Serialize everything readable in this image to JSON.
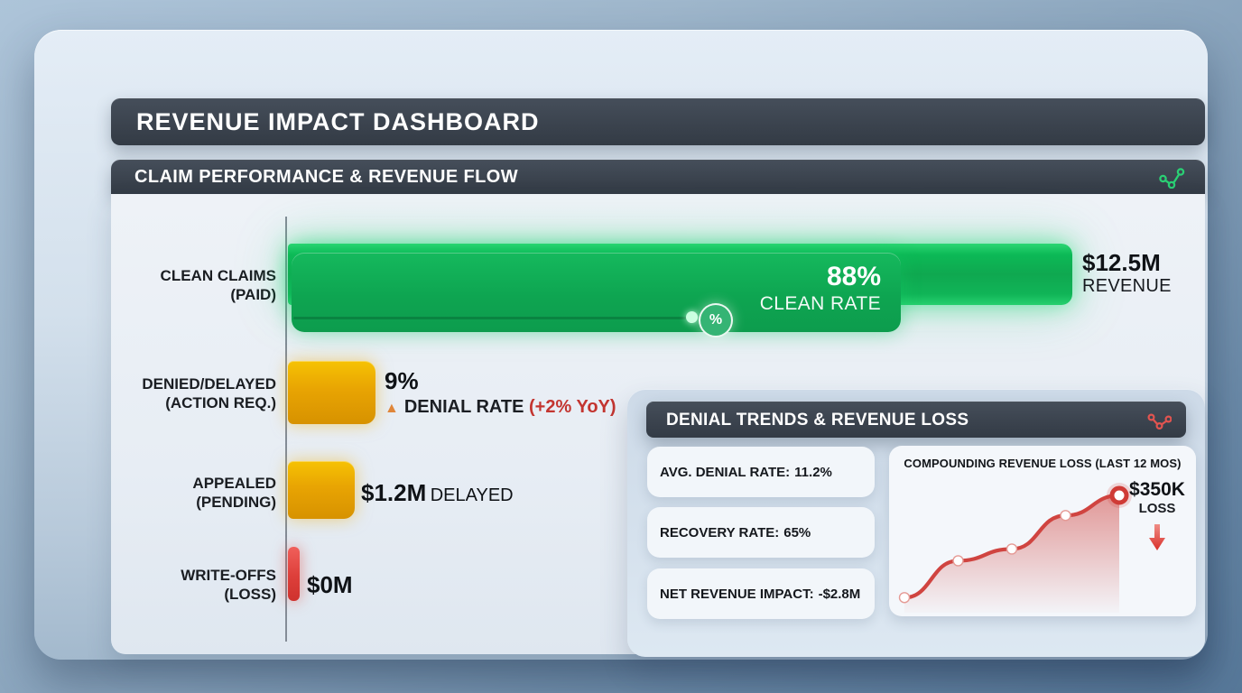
{
  "page": {
    "title": "REVENUE IMPACT DASHBOARD"
  },
  "claim_panel": {
    "title": "CLAIM PERFORMANCE & REVENUE FLOW",
    "percent_symbol": "%",
    "rows": [
      {
        "label_line1": "CLEAN CLAIMS",
        "label_line2": "(PAID)",
        "badge_value": "88%",
        "badge_label": "CLEAN RATE",
        "value": "$12.5M",
        "value_label": "REVENUE"
      },
      {
        "label_line1": "DENIED/DELAYED",
        "label_line2": "(ACTION REQ.)",
        "value": "9%",
        "trend_icon": "▲",
        "value_label": "DENIAL RATE",
        "value_trend": "(+2% YoY)"
      },
      {
        "label_line1": "APPEALED",
        "label_line2": "(PENDING)",
        "value": "$1.2M",
        "value_label": "DELAYED"
      },
      {
        "label_line1": "WRITE-OFFS",
        "label_line2": "(LOSS)",
        "value": "$0M"
      }
    ]
  },
  "denial_panel": {
    "title": "DENIAL TRENDS & REVENUE LOSS",
    "stats": [
      {
        "label": "AVG. DENIAL RATE:",
        "value": "11.2%"
      },
      {
        "label": "RECOVERY RATE:",
        "value": "65%"
      },
      {
        "label": "NET REVENUE IMPACT:",
        "value": "-$2.8M"
      }
    ],
    "chart_title": "COMPOUNDING REVENUE LOSS (LAST 12 MOS)",
    "end_value": "$350K",
    "end_label": "LOSS"
  },
  "colors": {
    "green": "#0fae54",
    "amber": "#e8a403",
    "red": "#df453f",
    "line_red": "#d04440",
    "dark_header": "#3e4650",
    "trend_red": "#c33530"
  },
  "chart_data": [
    {
      "type": "bar",
      "orientation": "horizontal",
      "title": "CLAIM PERFORMANCE & REVENUE FLOW",
      "categories": [
        "CLEAN CLAIMS (PAID)",
        "DENIED/DELAYED (ACTION REQ.)",
        "APPEALED (PENDING)",
        "WRITE-OFFS (LOSS)"
      ],
      "value_annotations": [
        "88% CLEAN RATE; $12.5M REVENUE",
        "9% DENIAL RATE (+2% YoY)",
        "$1.2M DELAYED",
        "$0M"
      ],
      "bar_fractions": [
        1.0,
        0.112,
        0.085,
        0.015
      ],
      "bar_colors": [
        "#0fae54",
        "#e8a403",
        "#e8a403",
        "#df453f"
      ],
      "axis": "vertical-baseline-left",
      "grid": false,
      "legend": false
    },
    {
      "type": "line",
      "title": "COMPOUNDING REVENUE LOSS (LAST 12 MOS)",
      "x": [
        1,
        2,
        3,
        4,
        5
      ],
      "values_k_usd": [
        45,
        155,
        190,
        290,
        350
      ],
      "ylim": [
        0,
        350
      ],
      "end_annotation": "$350K LOSS",
      "color": "#d04440",
      "area_fill": true,
      "markers": "white-dots, enlarged ring on last point",
      "grid": false,
      "legend": false
    }
  ]
}
